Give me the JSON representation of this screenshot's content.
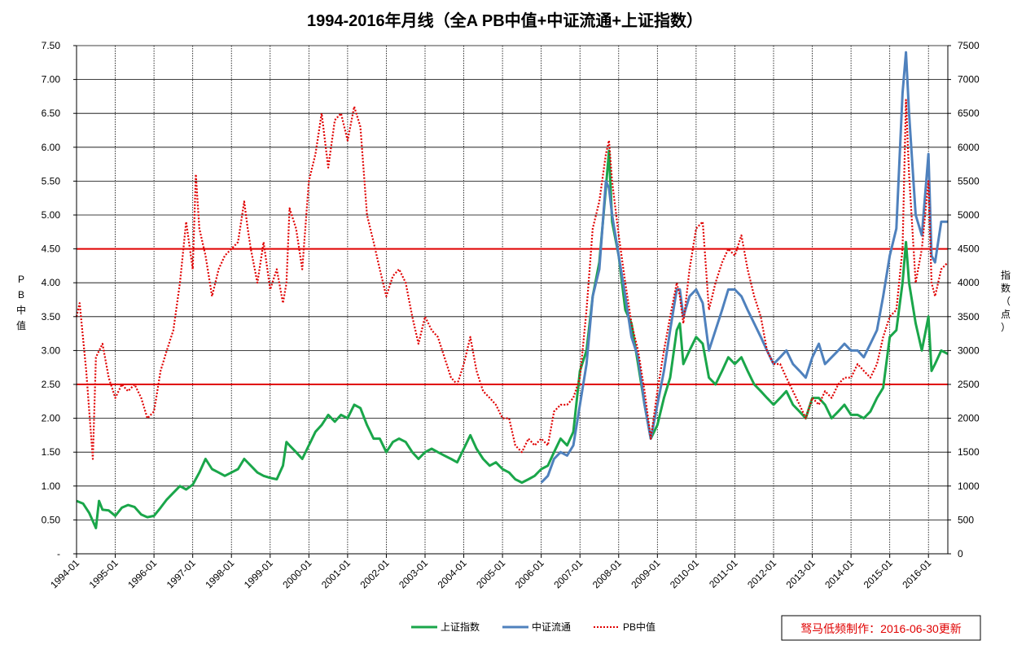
{
  "chart_data": {
    "type": "line",
    "title": "1994-2016年月线（全A PB中值+中证流通+上证指数）",
    "ylabel_left": "PB中值",
    "ylabel_right": "指数（点）",
    "ylim_left": [
      0,
      7.5
    ],
    "ylim_right": [
      0,
      7500
    ],
    "y_ticks_left": [
      "-",
      "0.50",
      "1.00",
      "1.50",
      "2.00",
      "2.50",
      "3.00",
      "3.50",
      "4.00",
      "4.50",
      "5.00",
      "5.50",
      "6.00",
      "6.50",
      "7.00",
      "7.50"
    ],
    "y_ticks_right": [
      "0",
      "500",
      "1000",
      "1500",
      "2000",
      "2500",
      "3000",
      "3500",
      "4000",
      "4500",
      "5000",
      "5500",
      "6000",
      "6500",
      "7000",
      "7500"
    ],
    "x_ticks": [
      "1994-01",
      "1995-01",
      "1996-01",
      "1997-01",
      "1998-01",
      "1999-01",
      "2000-01",
      "2001-01",
      "2002-01",
      "2003-01",
      "2004-01",
      "2005-01",
      "2006-01",
      "2007-01",
      "2008-01",
      "2009-01",
      "2010-01",
      "2011-01",
      "2012-01",
      "2013-01",
      "2014-01",
      "2015-01",
      "2016-01"
    ],
    "x_range": [
      1994.0,
      2016.5
    ],
    "reference_lines": [
      {
        "axis": "left",
        "value": 4.5,
        "color": "#e00000"
      },
      {
        "axis": "left",
        "value": 2.5,
        "color": "#e00000"
      }
    ],
    "series": [
      {
        "name": "上证指数",
        "axis": "right",
        "color": "#1aa64a",
        "style": "solid",
        "x": [
          1994.0,
          1994.17,
          1994.33,
          1994.5,
          1994.58,
          1994.67,
          1994.83,
          1995.0,
          1995.17,
          1995.33,
          1995.5,
          1995.67,
          1995.83,
          1996.0,
          1996.17,
          1996.33,
          1996.5,
          1996.67,
          1996.83,
          1997.0,
          1997.17,
          1997.33,
          1997.5,
          1997.67,
          1997.83,
          1998.0,
          1998.17,
          1998.33,
          1998.5,
          1998.67,
          1998.83,
          1999.0,
          1999.17,
          1999.33,
          1999.42,
          1999.5,
          1999.67,
          1999.83,
          2000.0,
          2000.17,
          2000.33,
          2000.5,
          2000.67,
          2000.83,
          2001.0,
          2001.17,
          2001.33,
          2001.5,
          2001.67,
          2001.83,
          2002.0,
          2002.17,
          2002.33,
          2002.5,
          2002.67,
          2002.83,
          2003.0,
          2003.17,
          2003.33,
          2003.5,
          2003.67,
          2003.83,
          2004.0,
          2004.17,
          2004.33,
          2004.5,
          2004.67,
          2004.83,
          2005.0,
          2005.17,
          2005.33,
          2005.5,
          2005.67,
          2005.83,
          2006.0,
          2006.17,
          2006.33,
          2006.5,
          2006.67,
          2006.83,
          2007.0,
          2007.17,
          2007.33,
          2007.5,
          2007.67,
          2007.75,
          2007.83,
          2008.0,
          2008.17,
          2008.33,
          2008.5,
          2008.67,
          2008.83,
          2009.0,
          2009.17,
          2009.33,
          2009.5,
          2009.58,
          2009.67,
          2009.83,
          2010.0,
          2010.17,
          2010.33,
          2010.5,
          2010.67,
          2010.83,
          2011.0,
          2011.17,
          2011.33,
          2011.5,
          2011.67,
          2011.83,
          2012.0,
          2012.17,
          2012.33,
          2012.5,
          2012.67,
          2012.83,
          2013.0,
          2013.17,
          2013.33,
          2013.5,
          2013.67,
          2013.83,
          2014.0,
          2014.17,
          2014.33,
          2014.5,
          2014.67,
          2014.83,
          2015.0,
          2015.17,
          2015.33,
          2015.42,
          2015.5,
          2015.67,
          2015.83,
          2016.0,
          2016.08,
          2016.17,
          2016.33,
          2016.5
        ],
        "values": [
          780,
          740,
          600,
          380,
          780,
          650,
          640,
          560,
          680,
          720,
          690,
          580,
          540,
          560,
          680,
          800,
          900,
          1000,
          950,
          1020,
          1200,
          1400,
          1250,
          1200,
          1150,
          1200,
          1250,
          1400,
          1300,
          1200,
          1150,
          1120,
          1100,
          1300,
          1650,
          1600,
          1500,
          1400,
          1600,
          1800,
          1900,
          2050,
          1950,
          2050,
          2000,
          2200,
          2150,
          1900,
          1700,
          1700,
          1500,
          1650,
          1700,
          1650,
          1500,
          1400,
          1500,
          1550,
          1500,
          1450,
          1400,
          1350,
          1550,
          1750,
          1550,
          1400,
          1300,
          1350,
          1250,
          1200,
          1100,
          1050,
          1100,
          1150,
          1250,
          1300,
          1500,
          1700,
          1600,
          1800,
          2700,
          3000,
          3800,
          4300,
          5400,
          5950,
          4900,
          4400,
          3600,
          3400,
          2800,
          2200,
          1700,
          1900,
          2300,
          2600,
          3300,
          3400,
          2800,
          3000,
          3200,
          3100,
          2600,
          2500,
          2700,
          2900,
          2800,
          2900,
          2700,
          2500,
          2400,
          2300,
          2200,
          2300,
          2400,
          2200,
          2100,
          2000,
          2300,
          2300,
          2200,
          2000,
          2100,
          2200,
          2050,
          2050,
          2000,
          2100,
          2300,
          2450,
          3200,
          3300,
          4000,
          4600,
          4000,
          3400,
          3000,
          3500,
          2700,
          2800,
          3000,
          2950
        ]
      },
      {
        "name": "中证流通",
        "axis": "right",
        "color": "#4f81bd",
        "style": "solid",
        "x": [
          2006.0,
          2006.17,
          2006.33,
          2006.5,
          2006.67,
          2006.83,
          2007.0,
          2007.17,
          2007.33,
          2007.5,
          2007.67,
          2007.75,
          2007.83,
          2008.0,
          2008.17,
          2008.33,
          2008.5,
          2008.67,
          2008.83,
          2009.0,
          2009.17,
          2009.33,
          2009.5,
          2009.58,
          2009.67,
          2009.83,
          2010.0,
          2010.17,
          2010.33,
          2010.5,
          2010.67,
          2010.83,
          2011.0,
          2011.17,
          2011.33,
          2011.5,
          2011.67,
          2011.83,
          2012.0,
          2012.17,
          2012.33,
          2012.5,
          2012.67,
          2012.83,
          2013.0,
          2013.17,
          2013.33,
          2013.5,
          2013.67,
          2013.83,
          2014.0,
          2014.17,
          2014.33,
          2014.5,
          2014.67,
          2014.83,
          2015.0,
          2015.17,
          2015.33,
          2015.42,
          2015.5,
          2015.67,
          2015.83,
          2016.0,
          2016.08,
          2016.17,
          2016.33,
          2016.5
        ],
        "values": [
          1050,
          1150,
          1400,
          1500,
          1450,
          1600,
          2200,
          2800,
          3800,
          4200,
          5500,
          5400,
          5000,
          4400,
          3800,
          3200,
          2900,
          2200,
          1700,
          2200,
          2700,
          3300,
          3900,
          3900,
          3500,
          3800,
          3900,
          3700,
          3000,
          3300,
          3600,
          3900,
          3900,
          3800,
          3600,
          3400,
          3200,
          3000,
          2800,
          2900,
          3000,
          2800,
          2700,
          2600,
          2900,
          3100,
          2800,
          2900,
          3000,
          3100,
          3000,
          3000,
          2900,
          3100,
          3300,
          3800,
          4400,
          4800,
          6800,
          7400,
          6500,
          5000,
          4700,
          5900,
          4400,
          4300,
          4900,
          4900
        ]
      },
      {
        "name": "PB中值",
        "axis": "left",
        "color": "#e00000",
        "style": "dotted",
        "x": [
          1994.0,
          1994.08,
          1994.25,
          1994.42,
          1994.5,
          1994.67,
          1994.83,
          1995.0,
          1995.17,
          1995.33,
          1995.5,
          1995.67,
          1995.83,
          1996.0,
          1996.17,
          1996.33,
          1996.5,
          1996.67,
          1996.83,
          1997.0,
          1997.08,
          1997.17,
          1997.33,
          1997.5,
          1997.67,
          1997.83,
          1998.0,
          1998.17,
          1998.33,
          1998.42,
          1998.5,
          1998.67,
          1998.83,
          1999.0,
          1999.17,
          1999.33,
          1999.42,
          1999.5,
          1999.67,
          1999.83,
          2000.0,
          2000.17,
          2000.33,
          2000.5,
          2000.67,
          2000.83,
          2001.0,
          2001.17,
          2001.33,
          2001.5,
          2001.67,
          2001.83,
          2002.0,
          2002.17,
          2002.33,
          2002.5,
          2002.67,
          2002.83,
          2003.0,
          2003.17,
          2003.33,
          2003.5,
          2003.67,
          2003.83,
          2004.0,
          2004.17,
          2004.33,
          2004.5,
          2004.67,
          2004.83,
          2005.0,
          2005.17,
          2005.33,
          2005.5,
          2005.67,
          2005.83,
          2006.0,
          2006.17,
          2006.33,
          2006.5,
          2006.67,
          2006.83,
          2007.0,
          2007.17,
          2007.33,
          2007.5,
          2007.67,
          2007.75,
          2007.83,
          2008.0,
          2008.17,
          2008.33,
          2008.5,
          2008.67,
          2008.83,
          2009.0,
          2009.17,
          2009.33,
          2009.5,
          2009.58,
          2009.67,
          2009.83,
          2010.0,
          2010.17,
          2010.33,
          2010.5,
          2010.67,
          2010.83,
          2011.0,
          2011.17,
          2011.33,
          2011.5,
          2011.67,
          2011.83,
          2012.0,
          2012.17,
          2012.33,
          2012.5,
          2012.67,
          2012.83,
          2013.0,
          2013.17,
          2013.33,
          2013.5,
          2013.67,
          2013.83,
          2014.0,
          2014.17,
          2014.33,
          2014.5,
          2014.67,
          2014.83,
          2015.0,
          2015.17,
          2015.33,
          2015.42,
          2015.5,
          2015.67,
          2015.83,
          2016.0,
          2016.08,
          2016.17,
          2016.33,
          2016.5
        ],
        "values": [
          3.5,
          3.7,
          2.7,
          1.4,
          2.9,
          3.1,
          2.6,
          2.3,
          2.5,
          2.4,
          2.5,
          2.3,
          2.0,
          2.1,
          2.7,
          3.0,
          3.3,
          4.0,
          4.9,
          4.2,
          5.6,
          4.8,
          4.4,
          3.8,
          4.2,
          4.4,
          4.5,
          4.6,
          5.2,
          4.8,
          4.5,
          4.0,
          4.6,
          3.9,
          4.2,
          3.7,
          4.0,
          5.1,
          4.8,
          4.2,
          5.5,
          5.9,
          6.5,
          5.7,
          6.4,
          6.5,
          6.1,
          6.6,
          6.3,
          5.0,
          4.6,
          4.2,
          3.8,
          4.1,
          4.2,
          4.0,
          3.5,
          3.1,
          3.5,
          3.3,
          3.2,
          2.9,
          2.6,
          2.5,
          2.8,
          3.2,
          2.7,
          2.4,
          2.3,
          2.2,
          2.0,
          2.0,
          1.6,
          1.5,
          1.7,
          1.6,
          1.7,
          1.6,
          2.1,
          2.2,
          2.2,
          2.3,
          2.6,
          3.6,
          4.8,
          5.2,
          5.9,
          6.1,
          5.5,
          4.7,
          4.0,
          3.4,
          3.0,
          2.4,
          1.7,
          2.4,
          3.0,
          3.5,
          4.0,
          3.8,
          3.4,
          4.2,
          4.8,
          4.9,
          3.6,
          4.0,
          4.3,
          4.5,
          4.4,
          4.7,
          4.2,
          3.8,
          3.5,
          3.0,
          2.8,
          2.8,
          2.6,
          2.4,
          2.2,
          2.0,
          2.3,
          2.2,
          2.4,
          2.3,
          2.5,
          2.6,
          2.6,
          2.8,
          2.7,
          2.6,
          2.8,
          3.2,
          3.5,
          3.6,
          4.5,
          6.7,
          5.6,
          4.0,
          4.5,
          5.5,
          4.0,
          3.8,
          4.2,
          4.3
        ]
      }
    ]
  },
  "legend": [
    {
      "label": "上证指数",
      "color": "#1aa64a",
      "style": "solid"
    },
    {
      "label": "中证流通",
      "color": "#4f81bd",
      "style": "solid"
    },
    {
      "label": "PB中值",
      "color": "#e00000",
      "style": "dotted"
    }
  ],
  "credit": "驽马低频制作：2016-06-30更新"
}
